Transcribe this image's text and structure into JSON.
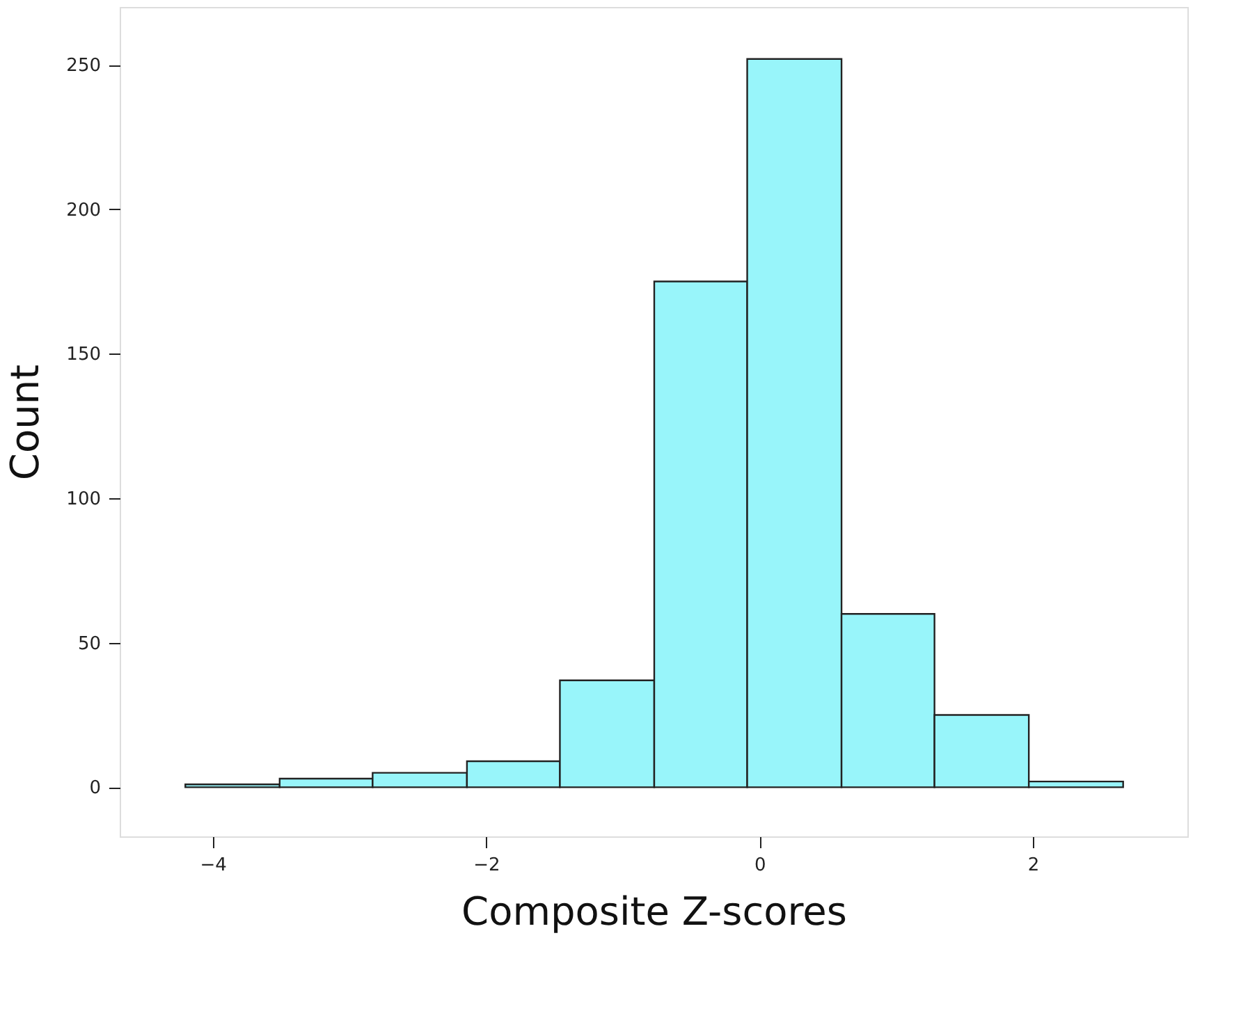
{
  "chart_data": {
    "type": "histogram",
    "xlabel": "Composite Z-scores",
    "ylabel": "Count",
    "bins": [
      -4.2,
      -3.51,
      -2.83,
      -2.14,
      -1.46,
      -0.77,
      -0.09,
      0.6,
      1.28,
      1.97,
      2.66
    ],
    "values": [
      1,
      3,
      5,
      9,
      37,
      175,
      252,
      60,
      25,
      2
    ],
    "color": "#98f5fa",
    "xlim": [
      -4.68,
      3.13
    ],
    "xticks": [
      -4,
      -2,
      0,
      2
    ],
    "ylim": [
      -17,
      270
    ],
    "yticks": [
      0,
      50,
      100,
      150,
      200,
      250
    ],
    "grid": false
  }
}
